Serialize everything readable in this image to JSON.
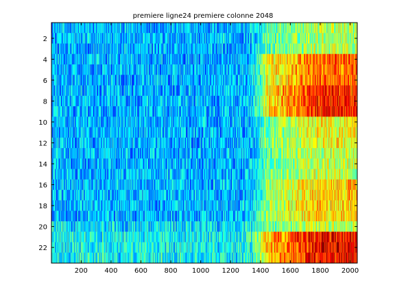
{
  "chart_data": {
    "type": "heatmap",
    "title": "premiere ligne24 premiere colonne 2048",
    "xlabel": "",
    "ylabel": "",
    "xlim": [
      1,
      2048
    ],
    "ylim": [
      0.5,
      23.5
    ],
    "y_reversed": true,
    "n_rows": 23,
    "n_cols": 2048,
    "x_ticks": [
      200,
      400,
      600,
      800,
      1000,
      1200,
      1400,
      1600,
      1800,
      2000
    ],
    "x_tick_labels": [
      "200",
      "400",
      "600",
      "800",
      "1000",
      "1200",
      "1400",
      "1600",
      "1800",
      "2000"
    ],
    "y_ticks": [
      2,
      4,
      6,
      8,
      10,
      12,
      14,
      16,
      18,
      20,
      22
    ],
    "y_tick_labels": [
      "2",
      "4",
      "6",
      "8",
      "10",
      "12",
      "14",
      "16",
      "18",
      "20",
      "22"
    ],
    "colormap": "jet",
    "clim": [
      0,
      1
    ],
    "transition_column": 1440,
    "row_bands": [
      {
        "rows": [
          1,
          3
        ],
        "left_level": 0.3,
        "right_level": 0.55
      },
      {
        "rows": [
          4,
          6
        ],
        "left_level": 0.3,
        "right_level": 0.78
      },
      {
        "rows": [
          7,
          9
        ],
        "left_level": 0.3,
        "right_level": 0.85
      },
      {
        "rows": [
          10,
          12
        ],
        "left_level": 0.3,
        "right_level": 0.62
      },
      {
        "rows": [
          13,
          15
        ],
        "left_level": 0.3,
        "right_level": 0.58
      },
      {
        "rows": [
          16,
          19
        ],
        "left_level": 0.3,
        "right_level": 0.68
      },
      {
        "rows": [
          20,
          20
        ],
        "left_level": 0.35,
        "right_level": 0.55
      },
      {
        "rows": [
          21,
          23
        ],
        "left_level": 0.38,
        "right_level": 0.88
      }
    ],
    "grid": false
  }
}
